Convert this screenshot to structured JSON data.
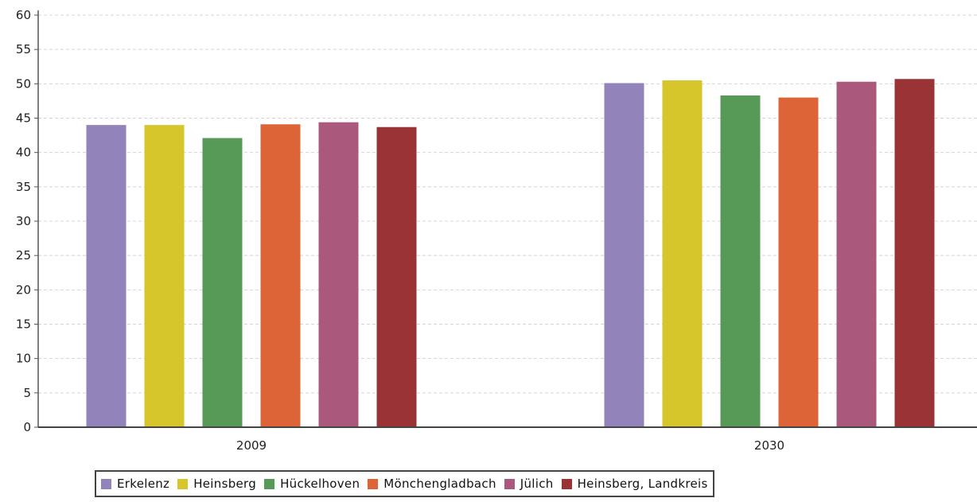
{
  "chart_data": {
    "type": "bar",
    "categories": [
      "2009",
      "2030"
    ],
    "series": [
      {
        "name": "Erkelenz",
        "color": "#9283bb",
        "values": [
          44.0,
          50.1
        ]
      },
      {
        "name": "Heinsberg",
        "color": "#d6c62c",
        "values": [
          44.0,
          50.5
        ]
      },
      {
        "name": "Hückelhoven",
        "color": "#579a57",
        "values": [
          42.1,
          48.3
        ]
      },
      {
        "name": "Mönchengladbach",
        "color": "#dc6436",
        "values": [
          44.1,
          48.0
        ]
      },
      {
        "name": "Jülich",
        "color": "#ab587d",
        "values": [
          44.4,
          50.3
        ]
      },
      {
        "name": "Heinsberg, Landkreis",
        "color": "#9a3336",
        "values": [
          43.7,
          50.7
        ]
      }
    ],
    "ylim": [
      0,
      60
    ],
    "yticks": [
      "0",
      "5",
      "10",
      "15",
      "20",
      "25",
      "30",
      "35",
      "40",
      "45",
      "50",
      "55",
      "60"
    ],
    "grid": true,
    "legend_position": "bottom"
  }
}
